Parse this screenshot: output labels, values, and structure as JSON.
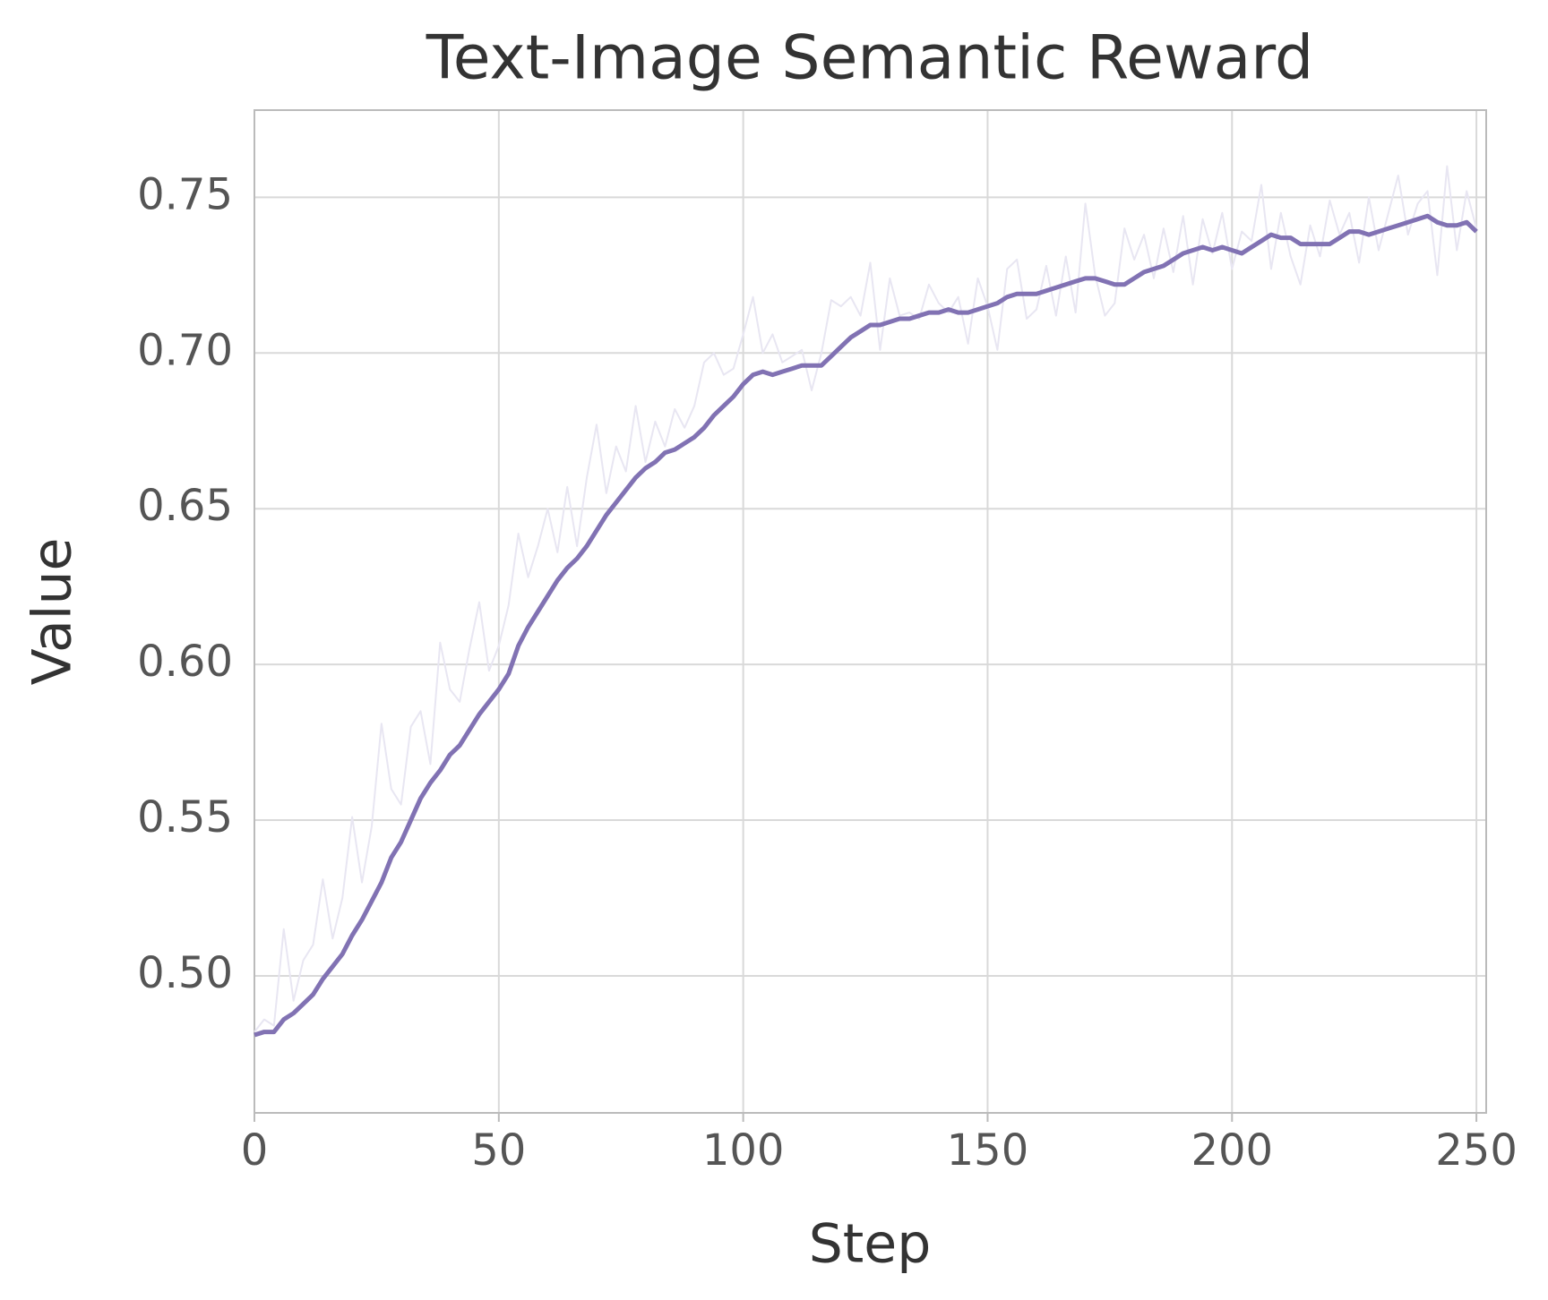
{
  "chart_data": {
    "type": "line",
    "title": "Text-Image Semantic Reward",
    "x_label": "Step",
    "y_label": "Value",
    "x": [
      0,
      2,
      4,
      6,
      8,
      10,
      12,
      14,
      16,
      18,
      20,
      22,
      24,
      26,
      28,
      30,
      32,
      34,
      36,
      38,
      40,
      42,
      44,
      46,
      48,
      50,
      52,
      54,
      56,
      58,
      60,
      62,
      64,
      66,
      68,
      70,
      72,
      74,
      76,
      78,
      80,
      82,
      84,
      86,
      88,
      90,
      92,
      94,
      96,
      98,
      100,
      102,
      104,
      106,
      108,
      110,
      112,
      114,
      116,
      118,
      120,
      122,
      124,
      126,
      128,
      130,
      132,
      134,
      136,
      138,
      140,
      142,
      144,
      146,
      148,
      150,
      152,
      154,
      156,
      158,
      160,
      162,
      164,
      166,
      168,
      170,
      172,
      174,
      176,
      178,
      180,
      182,
      184,
      186,
      188,
      190,
      192,
      194,
      196,
      198,
      200,
      202,
      204,
      206,
      208,
      210,
      212,
      214,
      216,
      218,
      220,
      222,
      224,
      226,
      228,
      230,
      232,
      234,
      236,
      238,
      240,
      242,
      244,
      246,
      248,
      250
    ],
    "series": [
      {
        "color": "#e8e6f2",
        "values": [
          0.482,
          0.486,
          0.484,
          0.515,
          0.492,
          0.505,
          0.51,
          0.531,
          0.512,
          0.525,
          0.551,
          0.53,
          0.548,
          0.581,
          0.56,
          0.555,
          0.58,
          0.585,
          0.568,
          0.607,
          0.592,
          0.588,
          0.605,
          0.62,
          0.598,
          0.606,
          0.619,
          0.642,
          0.628,
          0.638,
          0.65,
          0.636,
          0.657,
          0.638,
          0.66,
          0.677,
          0.655,
          0.67,
          0.662,
          0.683,
          0.665,
          0.678,
          0.67,
          0.682,
          0.676,
          0.683,
          0.697,
          0.7,
          0.693,
          0.695,
          0.706,
          0.718,
          0.7,
          0.706,
          0.697,
          0.699,
          0.701,
          0.688,
          0.7,
          0.717,
          0.715,
          0.718,
          0.712,
          0.729,
          0.701,
          0.724,
          0.712,
          0.713,
          0.711,
          0.722,
          0.716,
          0.713,
          0.718,
          0.703,
          0.724,
          0.715,
          0.701,
          0.727,
          0.73,
          0.711,
          0.714,
          0.728,
          0.712,
          0.731,
          0.713,
          0.748,
          0.725,
          0.712,
          0.716,
          0.74,
          0.73,
          0.738,
          0.724,
          0.74,
          0.726,
          0.744,
          0.722,
          0.743,
          0.732,
          0.745,
          0.727,
          0.739,
          0.736,
          0.754,
          0.727,
          0.745,
          0.731,
          0.722,
          0.741,
          0.731,
          0.749,
          0.738,
          0.745,
          0.729,
          0.75,
          0.733,
          0.745,
          0.757,
          0.738,
          0.748,
          0.752,
          0.725,
          0.76,
          0.733,
          0.752,
          0.74
        ],
        "width": 2
      },
      {
        "color": "#8172b3",
        "values": [
          0.481,
          0.482,
          0.482,
          0.486,
          0.488,
          0.491,
          0.494,
          0.499,
          0.503,
          0.507,
          0.513,
          0.518,
          0.524,
          0.53,
          0.538,
          0.543,
          0.55,
          0.557,
          0.562,
          0.566,
          0.571,
          0.574,
          0.579,
          0.584,
          0.588,
          0.592,
          0.597,
          0.606,
          0.612,
          0.617,
          0.622,
          0.627,
          0.631,
          0.634,
          0.638,
          0.643,
          0.648,
          0.652,
          0.656,
          0.66,
          0.663,
          0.665,
          0.668,
          0.669,
          0.671,
          0.673,
          0.676,
          0.68,
          0.683,
          0.686,
          0.69,
          0.693,
          0.694,
          0.693,
          0.694,
          0.695,
          0.696,
          0.696,
          0.696,
          0.699,
          0.702,
          0.705,
          0.707,
          0.709,
          0.709,
          0.71,
          0.711,
          0.711,
          0.712,
          0.713,
          0.713,
          0.714,
          0.713,
          0.713,
          0.714,
          0.715,
          0.716,
          0.718,
          0.719,
          0.719,
          0.719,
          0.72,
          0.721,
          0.722,
          0.723,
          0.724,
          0.724,
          0.723,
          0.722,
          0.722,
          0.724,
          0.726,
          0.727,
          0.728,
          0.73,
          0.732,
          0.733,
          0.734,
          0.733,
          0.734,
          0.733,
          0.732,
          0.734,
          0.736,
          0.738,
          0.737,
          0.737,
          0.735,
          0.735,
          0.735,
          0.735,
          0.737,
          0.739,
          0.739,
          0.738,
          0.739,
          0.74,
          0.741,
          0.742,
          0.743,
          0.744,
          0.742,
          0.741,
          0.741,
          0.742,
          0.739
        ],
        "width": 5
      }
    ],
    "xlim": [
      0,
      252
    ],
    "ylim": [
      0.456,
      0.778
    ],
    "xticks": [
      0,
      50,
      100,
      150,
      200,
      250
    ],
    "yticks": [
      {
        "value": 0.5,
        "label": "0.50"
      },
      0.55,
      {
        "value": 0.6,
        "label": "0.60"
      },
      0.65,
      {
        "value": 0.7,
        "label": "0.70"
      },
      0.75
    ],
    "grid": true
  }
}
